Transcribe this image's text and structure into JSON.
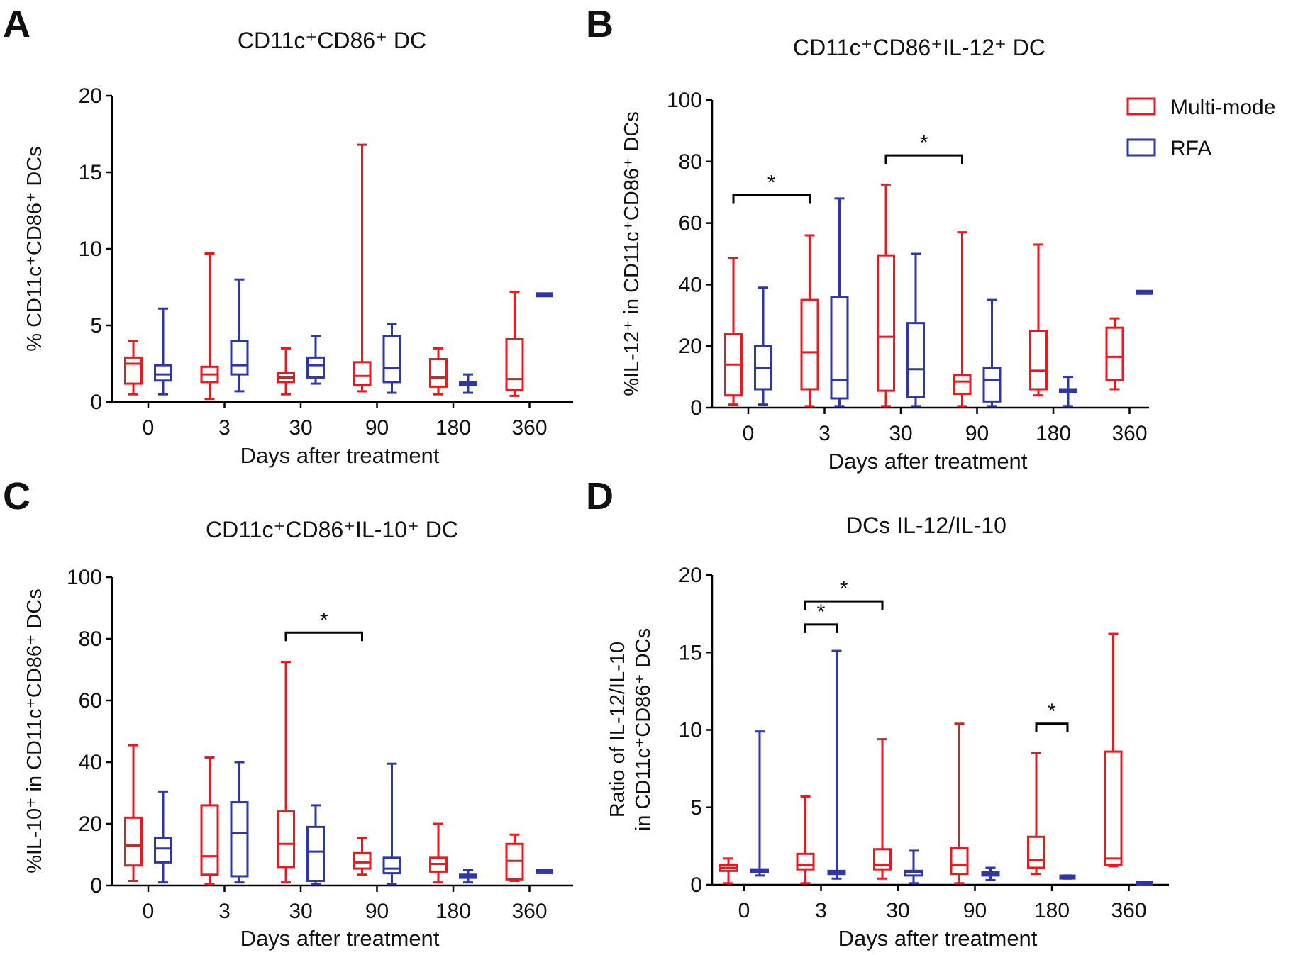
{
  "figure": {
    "legend": [
      {
        "label": "Multi-mode",
        "color": "#e8191f"
      },
      {
        "label": "RFA",
        "color": "#2f37a8"
      }
    ]
  },
  "chart_data": [
    {
      "panel": "A",
      "type": "box",
      "title": "CD11c⁺CD86⁺ DC",
      "xlabel": "Days after treatment",
      "ylabel": "% CD11c⁺CD86⁺ DCs",
      "ylim": [
        0,
        20
      ],
      "yticks": [
        "0",
        "5",
        "10",
        "15",
        "20"
      ],
      "categories": [
        "0",
        "3",
        "30",
        "90",
        "180",
        "360"
      ],
      "series": [
        {
          "name": "Multi-mode",
          "color": "#e8191f",
          "boxes": [
            {
              "min": 0.5,
              "q1": 1.2,
              "median": 2.5,
              "q3": 2.9,
              "max": 4.0
            },
            {
              "min": 0.2,
              "q1": 1.3,
              "median": 1.8,
              "q3": 2.3,
              "max": 9.7
            },
            {
              "min": 0.5,
              "q1": 1.3,
              "median": 1.6,
              "q3": 1.9,
              "max": 3.5
            },
            {
              "min": 0.7,
              "q1": 1.1,
              "median": 1.7,
              "q3": 2.6,
              "max": 16.8
            },
            {
              "min": 0.5,
              "q1": 1.0,
              "median": 1.6,
              "q3": 2.8,
              "max": 3.5
            },
            {
              "min": 0.4,
              "q1": 0.8,
              "median": 1.5,
              "q3": 4.1,
              "max": 7.2
            }
          ]
        },
        {
          "name": "RFA",
          "color": "#2f37a8",
          "boxes": [
            {
              "min": 0.5,
              "q1": 1.4,
              "median": 1.8,
              "q3": 2.4,
              "max": 6.1
            },
            {
              "min": 0.7,
              "q1": 1.8,
              "median": 2.4,
              "q3": 4.0,
              "max": 8.0
            },
            {
              "min": 1.2,
              "q1": 1.6,
              "median": 2.4,
              "q3": 2.9,
              "max": 4.3
            },
            {
              "min": 0.6,
              "q1": 1.3,
              "median": 2.2,
              "q3": 4.3,
              "max": 5.1
            },
            {
              "min": 0.6,
              "q1": 1.1,
              "median": 1.2,
              "q3": 1.3,
              "max": 1.8
            },
            {
              "min": 7.0,
              "q1": 7.0,
              "median": 7.0,
              "q3": 7.0,
              "max": 7.0
            }
          ]
        }
      ],
      "significance": []
    },
    {
      "panel": "B",
      "type": "box",
      "title": "CD11c⁺CD86⁺IL-12⁺ DC",
      "xlabel": "Days after treatment",
      "ylabel": "%IL-12⁺ in CD11c⁺CD86⁺ DCs",
      "ylim": [
        0,
        100
      ],
      "yticks": [
        "0",
        "20",
        "40",
        "60",
        "80",
        "100"
      ],
      "categories": [
        "0",
        "3",
        "30",
        "90",
        "180",
        "360"
      ],
      "series": [
        {
          "name": "Multi-mode",
          "color": "#e8191f",
          "boxes": [
            {
              "min": 1,
              "q1": 4,
              "median": 14,
              "q3": 24,
              "max": 48.5
            },
            {
              "min": 0.5,
              "q1": 6,
              "median": 18,
              "q3": 35,
              "max": 56
            },
            {
              "min": 0.5,
              "q1": 5.5,
              "median": 23,
              "q3": 49.5,
              "max": 72.5
            },
            {
              "min": 0.5,
              "q1": 4.5,
              "median": 8.5,
              "q3": 10.5,
              "max": 57
            },
            {
              "min": 4,
              "q1": 6,
              "median": 12,
              "q3": 25,
              "max": 53
            },
            {
              "min": 6,
              "q1": 9,
              "median": 16.5,
              "q3": 26,
              "max": 29
            }
          ]
        },
        {
          "name": "RFA",
          "color": "#2f37a8",
          "boxes": [
            {
              "min": 1,
              "q1": 6,
              "median": 13,
              "q3": 20,
              "max": 39
            },
            {
              "min": 0.5,
              "q1": 3,
              "median": 9,
              "q3": 36,
              "max": 68
            },
            {
              "min": 0.5,
              "q1": 3.5,
              "median": 12.5,
              "q3": 27.5,
              "max": 50
            },
            {
              "min": 0.5,
              "q1": 2,
              "median": 9,
              "q3": 13,
              "max": 35
            },
            {
              "min": 0.5,
              "q1": 5,
              "median": 5.5,
              "q3": 6,
              "max": 10
            },
            {
              "min": 37.5,
              "q1": 37.5,
              "median": 37.5,
              "q3": 37.5,
              "max": 37.5
            }
          ]
        }
      ],
      "significance": [
        {
          "from": "0",
          "to": "3",
          "y": 69,
          "label": "*"
        },
        {
          "from": "30",
          "to": "90",
          "y": 82,
          "label": "*"
        }
      ]
    },
    {
      "panel": "C",
      "type": "box",
      "title": "CD11c⁺CD86⁺IL-10⁺ DC",
      "xlabel": "Days after treatment",
      "ylabel": "%IL-10⁺ in CD11c⁺CD86⁺ DCs",
      "ylim": [
        0,
        100
      ],
      "yticks": [
        "0",
        "20",
        "40",
        "60",
        "80",
        "100"
      ],
      "categories": [
        "0",
        "3",
        "30",
        "90",
        "180",
        "360"
      ],
      "series": [
        {
          "name": "Multi-mode",
          "color": "#e8191f",
          "boxes": [
            {
              "min": 1.5,
              "q1": 6.5,
              "median": 13,
              "q3": 22,
              "max": 45.5
            },
            {
              "min": 0.5,
              "q1": 3.5,
              "median": 9.5,
              "q3": 26,
              "max": 41.5
            },
            {
              "min": 1,
              "q1": 6,
              "median": 13.5,
              "q3": 24,
              "max": 72.5
            },
            {
              "min": 3.5,
              "q1": 5.5,
              "median": 7.5,
              "q3": 10.5,
              "max": 15.5
            },
            {
              "min": 1,
              "q1": 4.5,
              "median": 7,
              "q3": 9,
              "max": 20
            },
            {
              "min": 1.5,
              "q1": 2,
              "median": 8,
              "q3": 13.5,
              "max": 16.5
            }
          ]
        },
        {
          "name": "RFA",
          "color": "#2f37a8",
          "boxes": [
            {
              "min": 1,
              "q1": 7.5,
              "median": 12,
              "q3": 15.5,
              "max": 30.5
            },
            {
              "min": 1,
              "q1": 3,
              "median": 17,
              "q3": 27,
              "max": 40
            },
            {
              "min": 0.5,
              "q1": 1.5,
              "median": 11,
              "q3": 19,
              "max": 26
            },
            {
              "min": 0.5,
              "q1": 4,
              "median": 5.5,
              "q3": 9,
              "max": 39.5
            },
            {
              "min": 1,
              "q1": 2.5,
              "median": 3,
              "q3": 3.5,
              "max": 5
            },
            {
              "min": 4.5,
              "q1": 4.5,
              "median": 4.5,
              "q3": 4.5,
              "max": 4.5
            }
          ]
        }
      ],
      "significance": [
        {
          "from": "30",
          "to": "90",
          "y": 82,
          "label": "*"
        }
      ]
    },
    {
      "panel": "D",
      "type": "box",
      "title": "DCs IL-12/IL-10",
      "xlabel": "Days after treatment",
      "ylabel": [
        "Ratio of IL-12/IL-10",
        "in CD11c⁺CD86⁺ DCs"
      ],
      "ylim": [
        0,
        20
      ],
      "yticks": [
        "0",
        "5",
        "10",
        "15",
        "20"
      ],
      "categories": [
        "0",
        "3",
        "30",
        "90",
        "180",
        "360"
      ],
      "series": [
        {
          "name": "Multi-mode",
          "color": "#e8191f",
          "boxes": [
            {
              "min": 0.1,
              "q1": 0.9,
              "median": 1.1,
              "q3": 1.3,
              "max": 1.7
            },
            {
              "min": 0.1,
              "q1": 1.0,
              "median": 1.3,
              "q3": 2.0,
              "max": 5.7
            },
            {
              "min": 0.4,
              "q1": 1.0,
              "median": 1.3,
              "q3": 2.3,
              "max": 9.4
            },
            {
              "min": 0.1,
              "q1": 0.7,
              "median": 1.3,
              "q3": 2.4,
              "max": 10.4
            },
            {
              "min": 0.7,
              "q1": 1.1,
              "median": 1.6,
              "q3": 3.1,
              "max": 8.5
            },
            {
              "min": 1.2,
              "q1": 1.3,
              "median": 1.7,
              "q3": 8.6,
              "max": 16.2
            }
          ]
        },
        {
          "name": "RFA",
          "color": "#2f37a8",
          "boxes": [
            {
              "min": 0.6,
              "q1": 0.8,
              "median": 0.9,
              "q3": 1.0,
              "max": 9.9
            },
            {
              "min": 0.4,
              "q1": 0.7,
              "median": 0.8,
              "q3": 0.9,
              "max": 15.1
            },
            {
              "min": 0.1,
              "q1": 0.6,
              "median": 0.8,
              "q3": 0.9,
              "max": 2.2
            },
            {
              "min": 0.3,
              "q1": 0.6,
              "median": 0.7,
              "q3": 0.8,
              "max": 1.1
            },
            {
              "min": 0.4,
              "q1": 0.5,
              "median": 0.5,
              "q3": 0.55,
              "max": 0.6
            },
            {
              "min": 0.1,
              "q1": 0.1,
              "median": 0.1,
              "q3": 0.1,
              "max": 0.1
            }
          ]
        }
      ],
      "significance": [
        {
          "from": "3",
          "to": "3-RFA",
          "y": 16.8,
          "label": "*"
        },
        {
          "from": "3",
          "to": "30",
          "y": 18.3,
          "label": "*"
        },
        {
          "from": "180",
          "to": "180-RFA",
          "y": 10.4,
          "label": "*"
        }
      ]
    }
  ]
}
